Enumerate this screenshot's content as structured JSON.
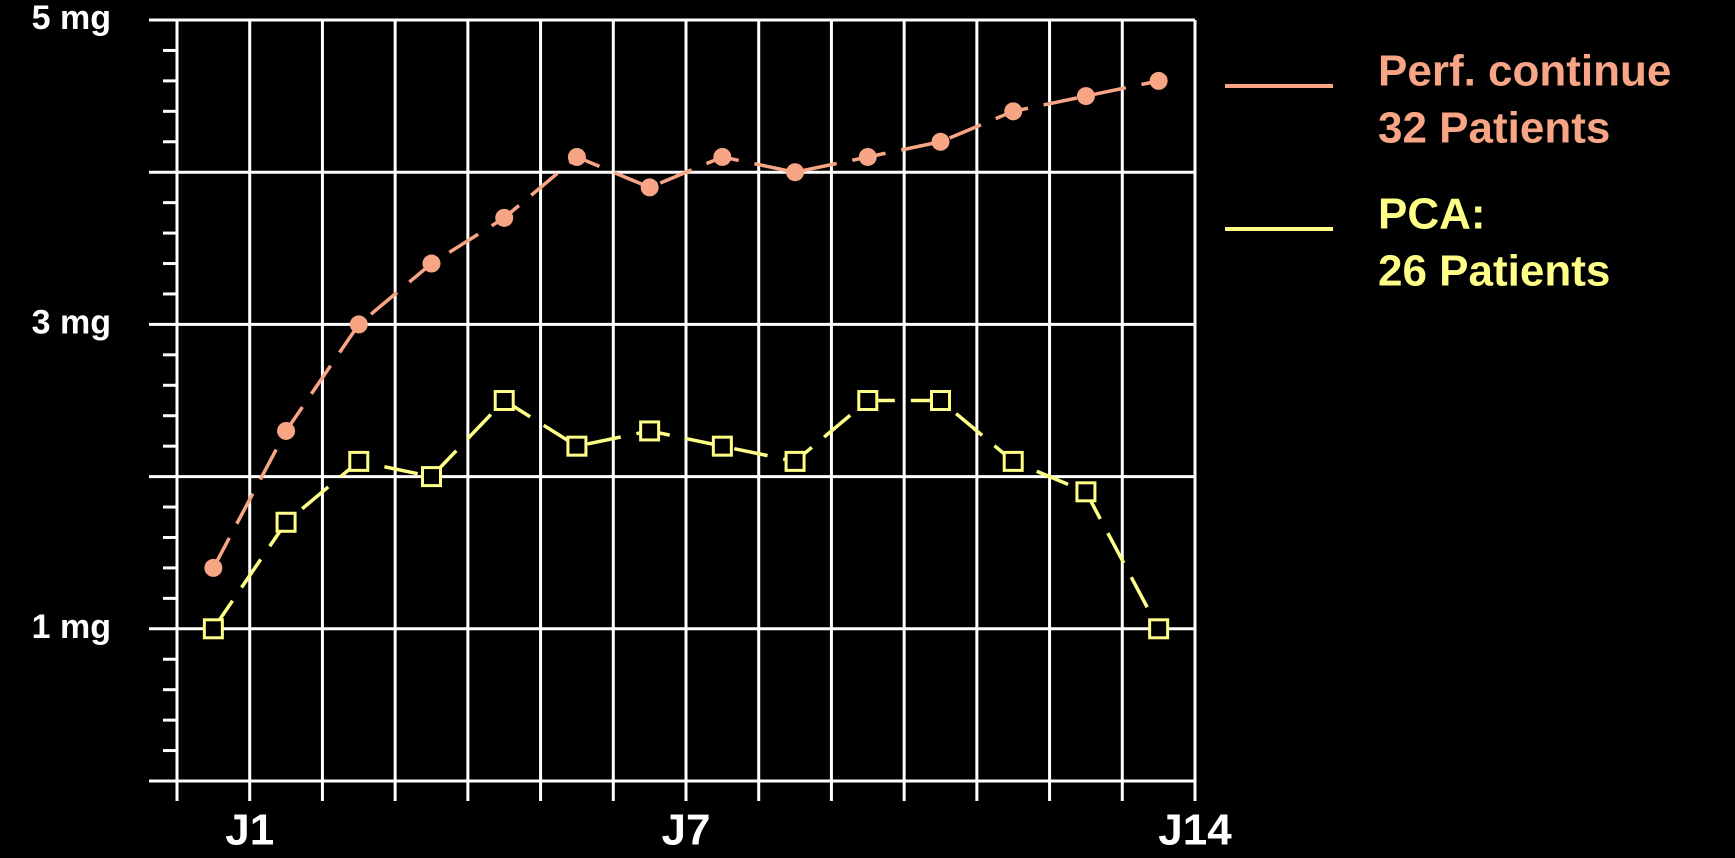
{
  "chart_data": {
    "type": "line",
    "x": [
      0.5,
      1.5,
      2.5,
      3.5,
      4.5,
      5.5,
      6.5,
      7.5,
      8.5,
      9.5,
      10.5,
      11.5,
      12.5,
      13.5
    ],
    "series": [
      {
        "name": [
          "Perf. continue",
          "32 Patients"
        ],
        "color": "#f7a585",
        "marker": "circle",
        "values": [
          1.4,
          2.3,
          3.0,
          3.4,
          3.7,
          4.1,
          3.9,
          4.1,
          4.0,
          4.1,
          4.2,
          4.4,
          4.5,
          4.6
        ]
      },
      {
        "name": [
          "PCA:",
          "26 Patients"
        ],
        "color": "#ffff88",
        "marker": "square",
        "values": [
          1.0,
          1.7,
          2.1,
          2.0,
          2.5,
          2.2,
          2.3,
          2.2,
          2.1,
          2.5,
          2.5,
          2.1,
          1.9,
          1.0
        ]
      }
    ],
    "xlim": [
      0,
      14
    ],
    "xticks": [
      {
        "value": 1,
        "label": "J1"
      },
      {
        "value": 2,
        "label": null
      },
      {
        "value": 3,
        "label": null
      },
      {
        "value": 4,
        "label": null
      },
      {
        "value": 5,
        "label": null
      },
      {
        "value": 6,
        "label": null
      },
      {
        "value": 7,
        "label": "J7"
      },
      {
        "value": 8,
        "label": null
      },
      {
        "value": 9,
        "label": null
      },
      {
        "value": 10,
        "label": null
      },
      {
        "value": 11,
        "label": null
      },
      {
        "value": 12,
        "label": null
      },
      {
        "value": 13,
        "label": null
      },
      {
        "value": 14,
        "label": "J14"
      }
    ],
    "ylim": [
      0,
      5
    ],
    "yticks": [
      {
        "value": 0,
        "label": null
      },
      {
        "value": 1,
        "label": "1 mg"
      },
      {
        "value": 2,
        "label": null
      },
      {
        "value": 3,
        "label": "3 mg"
      },
      {
        "value": 4,
        "label": null
      },
      {
        "value": 5,
        "label": "5 mg"
      }
    ],
    "grid": true,
    "legend": "right"
  }
}
